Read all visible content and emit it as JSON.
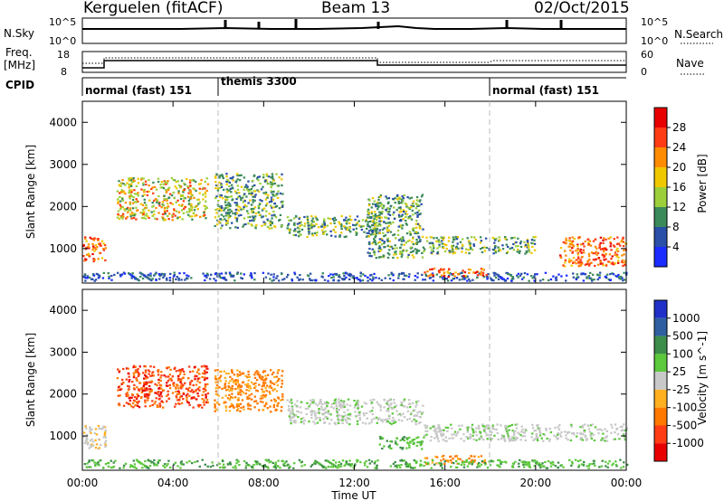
{
  "header": {
    "title_left": "Kerguelen (fitACF)",
    "title_center": "Beam 13",
    "title_right": "02/Oct/2015"
  },
  "panels": {
    "nsky": {
      "label": "N.Sky",
      "tick_top": "10^5",
      "tick_bottom": "10^0",
      "right_label": "N.Search",
      "right_tick_top": "10^5",
      "right_tick_bottom": "10^0"
    },
    "freq": {
      "label_line1": "Freq.",
      "label_line2": "[MHz]",
      "tick_top": "18",
      "tick_bottom": "8",
      "right_label": "Nave",
      "right_tick_top": "60",
      "right_tick_bottom": "0"
    },
    "cpid": {
      "label": "CPID",
      "segments": [
        {
          "label": "normal (fast) 151"
        },
        {
          "label": "themis 3300"
        },
        {
          "label": "normal (fast) 151"
        }
      ]
    }
  },
  "chart_data": [
    {
      "type": "heatmap",
      "ylabel": "Slant Range [km]",
      "xlabel": "",
      "ylim": [
        180,
        4500
      ],
      "xlim": [
        0,
        24
      ],
      "yticks": [
        1000,
        2000,
        3000,
        4000
      ],
      "colorbar": {
        "label": "Power [dB]",
        "ticks": [
          "4",
          "8",
          "12",
          "16",
          "20",
          "24",
          "28"
        ],
        "colors": [
          "#1a2cff",
          "#2a4fa8",
          "#3b8a5a",
          "#9ccf3a",
          "#f0c800",
          "#ff8c00",
          "#ff3c14",
          "#e80000"
        ]
      },
      "regions": [
        {
          "t0": 0.0,
          "t1": 1.0,
          "r0": 700,
          "r1": 1300,
          "level": "high"
        },
        {
          "t0": 0.0,
          "t1": 24.0,
          "r0": 250,
          "r1": 450,
          "level": "low"
        },
        {
          "t0": 1.5,
          "t1": 5.5,
          "r0": 1700,
          "r1": 2700,
          "level": "mid-high"
        },
        {
          "t0": 5.8,
          "t1": 8.8,
          "r0": 1500,
          "r1": 2800,
          "level": "mid"
        },
        {
          "t0": 9.0,
          "t1": 13.5,
          "r0": 1300,
          "r1": 1800,
          "level": "mid"
        },
        {
          "t0": 12.5,
          "t1": 15.0,
          "r0": 800,
          "r1": 2300,
          "level": "mid"
        },
        {
          "t0": 15.0,
          "t1": 17.8,
          "r0": 350,
          "r1": 550,
          "level": "high"
        },
        {
          "t0": 15.0,
          "t1": 20.0,
          "r0": 900,
          "r1": 1300,
          "level": "mid"
        },
        {
          "t0": 21.0,
          "t1": 24.0,
          "r0": 600,
          "r1": 1300,
          "level": "high"
        }
      ]
    },
    {
      "type": "heatmap",
      "ylabel": "Slant Range [km]",
      "xlabel": "Time UT",
      "ylim": [
        180,
        4500
      ],
      "xlim": [
        0,
        24
      ],
      "yticks": [
        1000,
        2000,
        3000,
        4000
      ],
      "xticks": [
        "00:00",
        "04:00",
        "08:00",
        "12:00",
        "16:00",
        "20:00",
        "00:00"
      ],
      "colorbar": {
        "label": "Velocity [m s^-1]",
        "ticks": [
          "1000",
          "500",
          "100",
          "25",
          "-25",
          "-100",
          "-500",
          "-1000"
        ],
        "colors": [
          "#2030c8",
          "#2f5fa0",
          "#3c8c4a",
          "#5cc83c",
          "#c8c8c8",
          "#ffb020",
          "#ff7800",
          "#ff3c14",
          "#e80000"
        ]
      },
      "regions": [
        {
          "t0": 0.0,
          "t1": 1.0,
          "r0": 700,
          "r1": 1300,
          "level": "-25"
        },
        {
          "t0": 1.5,
          "t1": 5.5,
          "r0": 1700,
          "r1": 2700,
          "level": "-500"
        },
        {
          "t0": 5.8,
          "t1": 8.8,
          "r0": 1600,
          "r1": 2600,
          "level": "-100"
        },
        {
          "t0": 9.0,
          "t1": 15.0,
          "r0": 1300,
          "r1": 1900,
          "level": "25"
        },
        {
          "t0": 13.0,
          "t1": 15.0,
          "r0": 700,
          "r1": 1000,
          "level": "100"
        },
        {
          "t0": 15.0,
          "t1": 17.8,
          "r0": 350,
          "r1": 550,
          "level": "-100"
        },
        {
          "t0": 15.0,
          "t1": 24.0,
          "r0": 900,
          "r1": 1300,
          "level": "25"
        },
        {
          "t0": 0.0,
          "t1": 24.0,
          "r0": 250,
          "r1": 450,
          "level": "100"
        }
      ]
    }
  ],
  "xaxis": {
    "label": "Time UT",
    "ticks": [
      "00:00",
      "04:00",
      "08:00",
      "12:00",
      "16:00",
      "20:00",
      "00:00"
    ]
  }
}
